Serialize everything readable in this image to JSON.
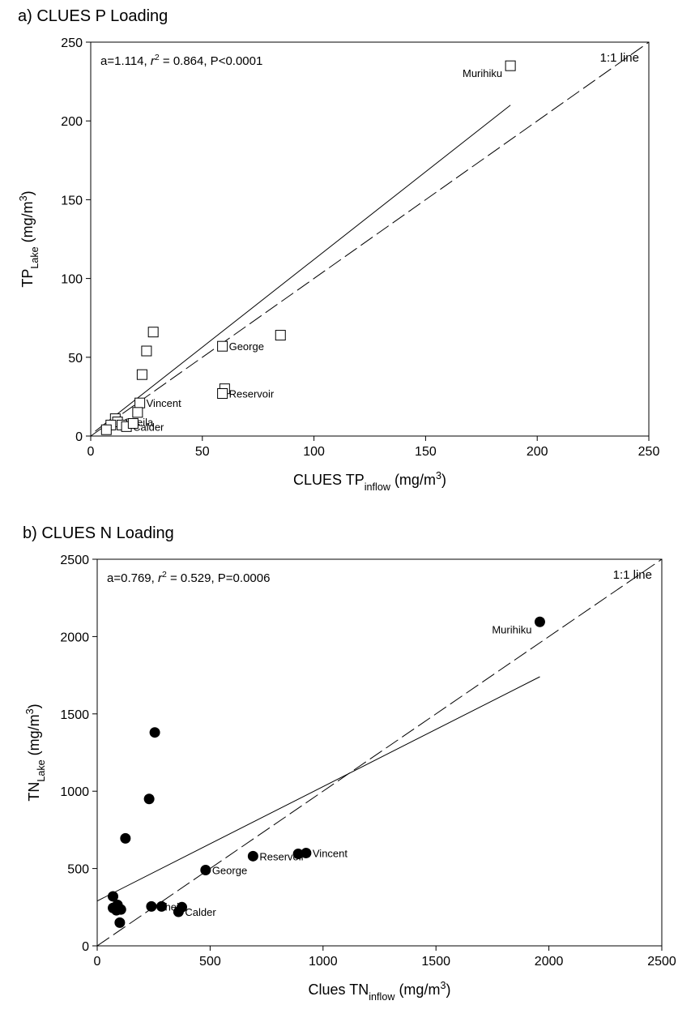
{
  "chart_data": [
    {
      "type": "scatter",
      "title": "a) CLUES P Loading",
      "x_label": [
        "CLUES TP",
        "inflow",
        " (mg/m",
        "3",
        ")"
      ],
      "y_label": [
        "TP",
        "Lake",
        " (mg/m",
        "3",
        ")"
      ],
      "annotation": [
        "a=1.114, ",
        "r",
        "2",
        " = 0.864, P<0.0001"
      ],
      "line_label": "1:1 line",
      "marker": "square",
      "x": [
        188,
        28,
        25,
        23,
        85,
        59,
        60,
        59,
        22,
        21,
        11,
        12,
        9,
        14,
        16,
        7,
        19
      ],
      "y": [
        235,
        66,
        54,
        39,
        64,
        57,
        30,
        27,
        21,
        15,
        11,
        9,
        7,
        7,
        6,
        4,
        8
      ],
      "point_labels": [
        "Murihiku",
        null,
        null,
        null,
        null,
        "George",
        null,
        "Reservoir",
        "Vincent",
        null,
        null,
        "Sheila",
        null,
        null,
        "Calder",
        null,
        null
      ],
      "fit_line": {
        "x": [
          2,
          188
        ],
        "y": [
          3,
          210
        ]
      },
      "identity_line": {
        "x": [
          0,
          250
        ],
        "y": [
          0,
          250
        ]
      },
      "xlim": [
        0,
        250
      ],
      "ylim": [
        0,
        250
      ],
      "xticks": [
        0,
        50,
        100,
        150,
        200,
        250
      ],
      "yticks": [
        0,
        50,
        100,
        150,
        200,
        250
      ]
    },
    {
      "type": "scatter",
      "title": "b) CLUES N Loading",
      "x_label": [
        "Clues TN",
        "inflow",
        " (mg/m",
        "3",
        ")"
      ],
      "y_label": [
        "TN",
        "Lake",
        " (mg/m",
        "3",
        ")"
      ],
      "annotation": [
        "a=0.769, ",
        "r",
        "2",
        " = 0.529, P=0.0006"
      ],
      "line_label": "1:1 line",
      "marker": "circle",
      "x": [
        1960,
        255,
        230,
        125,
        70,
        70,
        90,
        85,
        105,
        100,
        240,
        285,
        360,
        375,
        480,
        690,
        890,
        925
      ],
      "y": [
        2095,
        1380,
        950,
        695,
        320,
        245,
        265,
        230,
        235,
        150,
        255,
        255,
        220,
        250,
        490,
        580,
        595,
        600
      ],
      "point_labels": [
        "Murihiku",
        null,
        null,
        null,
        null,
        null,
        null,
        null,
        null,
        null,
        "Sheila",
        null,
        "Calder",
        null,
        "George",
        "Reservoir",
        null,
        "Vincent"
      ],
      "fit_line": {
        "x": [
          0,
          1960
        ],
        "y": [
          290,
          1740
        ]
      },
      "identity_line": {
        "x": [
          0,
          2500
        ],
        "y": [
          0,
          2500
        ]
      },
      "xlim": [
        0,
        2500
      ],
      "ylim": [
        0,
        2500
      ],
      "xticks": [
        0,
        500,
        1000,
        1500,
        2000,
        2500
      ],
      "yticks": [
        0,
        500,
        1000,
        1500,
        2000,
        2500
      ]
    }
  ]
}
